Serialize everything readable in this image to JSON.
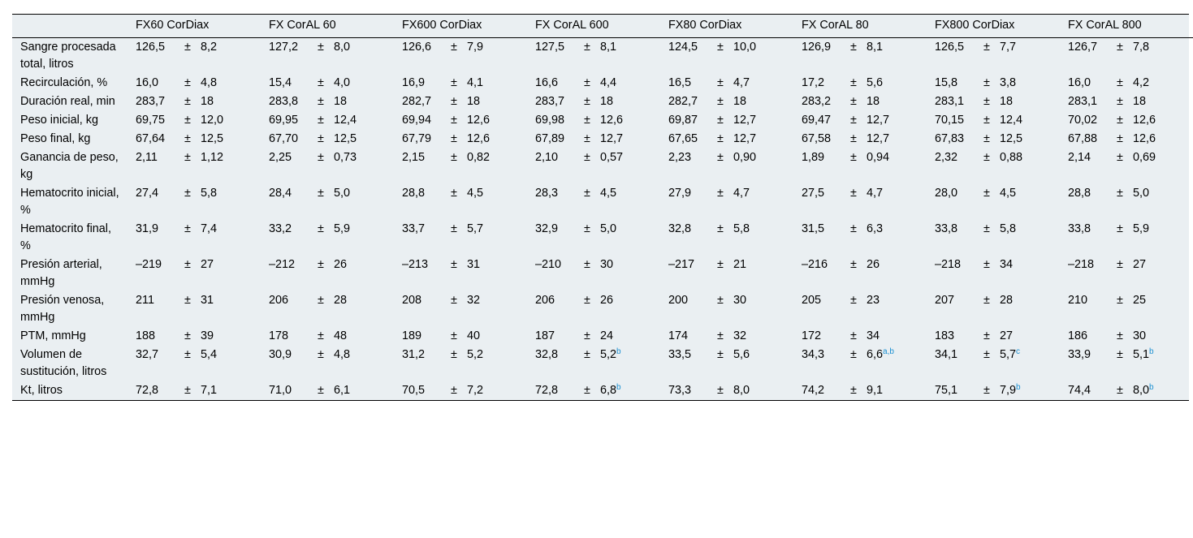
{
  "table": {
    "corner": "",
    "columns": [
      "FX60 CorDiax",
      "FX CorAL 60",
      "FX600 CorDiax",
      "FX CorAL 600",
      "FX80 CorDiax",
      "FX CorAL 80",
      "FX800 CorDiax",
      "FX CorAL 800"
    ],
    "rows": [
      {
        "label": "Sangre procesada total, litros",
        "cells": [
          {
            "mean": "126,5",
            "pm": "±",
            "sd": "8,2",
            "note": ""
          },
          {
            "mean": "127,2",
            "pm": "±",
            "sd": "8,0",
            "note": ""
          },
          {
            "mean": "126,6",
            "pm": "±",
            "sd": "7,9",
            "note": ""
          },
          {
            "mean": "127,5",
            "pm": "±",
            "sd": "8,1",
            "note": ""
          },
          {
            "mean": "124,5",
            "pm": "±",
            "sd": "10,0",
            "note": ""
          },
          {
            "mean": "126,9",
            "pm": "±",
            "sd": "8,1",
            "note": ""
          },
          {
            "mean": "126,5",
            "pm": "±",
            "sd": "7,7",
            "note": ""
          },
          {
            "mean": "126,7",
            "pm": "±",
            "sd": "7,8",
            "note": ""
          }
        ]
      },
      {
        "label": "Recirculación, %",
        "cells": [
          {
            "mean": "16,0",
            "pm": "±",
            "sd": "4,8",
            "note": ""
          },
          {
            "mean": "15,4",
            "pm": "±",
            "sd": "4,0",
            "note": ""
          },
          {
            "mean": "16,9",
            "pm": "±",
            "sd": "4,1",
            "note": ""
          },
          {
            "mean": "16,6",
            "pm": "±",
            "sd": "4,4",
            "note": ""
          },
          {
            "mean": "16,5",
            "pm": "±",
            "sd": "4,7",
            "note": ""
          },
          {
            "mean": "17,2",
            "pm": "±",
            "sd": "5,6",
            "note": ""
          },
          {
            "mean": "15,8",
            "pm": "±",
            "sd": "3,8",
            "note": ""
          },
          {
            "mean": "16,0",
            "pm": "±",
            "sd": "4,2",
            "note": ""
          }
        ]
      },
      {
        "label": "Duración real, min",
        "cells": [
          {
            "mean": "283,7",
            "pm": "±",
            "sd": "18",
            "note": ""
          },
          {
            "mean": "283,8",
            "pm": "±",
            "sd": "18",
            "note": ""
          },
          {
            "mean": "282,7",
            "pm": "±",
            "sd": "18",
            "note": ""
          },
          {
            "mean": "283,7",
            "pm": "±",
            "sd": "18",
            "note": ""
          },
          {
            "mean": "282,7",
            "pm": "±",
            "sd": "18",
            "note": ""
          },
          {
            "mean": "283,2",
            "pm": "±",
            "sd": "18",
            "note": ""
          },
          {
            "mean": "283,1",
            "pm": "±",
            "sd": "18",
            "note": ""
          },
          {
            "mean": "283,1",
            "pm": "±",
            "sd": "18",
            "note": ""
          }
        ]
      },
      {
        "label": "Peso inicial, kg",
        "cells": [
          {
            "mean": "69,75",
            "pm": "±",
            "sd": "12,0",
            "note": ""
          },
          {
            "mean": "69,95",
            "pm": "±",
            "sd": "12,4",
            "note": ""
          },
          {
            "mean": "69,94",
            "pm": "±",
            "sd": "12,6",
            "note": ""
          },
          {
            "mean": "69,98",
            "pm": "±",
            "sd": "12,6",
            "note": ""
          },
          {
            "mean": "69,87",
            "pm": "±",
            "sd": "12,7",
            "note": ""
          },
          {
            "mean": "69,47",
            "pm": "±",
            "sd": "12,7",
            "note": ""
          },
          {
            "mean": "70,15",
            "pm": "±",
            "sd": "12,4",
            "note": ""
          },
          {
            "mean": "70,02",
            "pm": "±",
            "sd": "12,6",
            "note": ""
          }
        ]
      },
      {
        "label": "Peso final, kg",
        "cells": [
          {
            "mean": "67,64",
            "pm": "±",
            "sd": "12,5",
            "note": ""
          },
          {
            "mean": "67,70",
            "pm": "±",
            "sd": "12,5",
            "note": ""
          },
          {
            "mean": "67,79",
            "pm": "±",
            "sd": "12,6",
            "note": ""
          },
          {
            "mean": "67,89",
            "pm": "±",
            "sd": "12,7",
            "note": ""
          },
          {
            "mean": "67,65",
            "pm": "±",
            "sd": "12,7",
            "note": ""
          },
          {
            "mean": "67,58",
            "pm": "±",
            "sd": "12,7",
            "note": ""
          },
          {
            "mean": "67,83",
            "pm": "±",
            "sd": "12,5",
            "note": ""
          },
          {
            "mean": "67,88",
            "pm": "±",
            "sd": "12,6",
            "note": ""
          }
        ]
      },
      {
        "label": "Ganancia de peso, kg",
        "cells": [
          {
            "mean": "2,11",
            "pm": "±",
            "sd": "1,12",
            "note": ""
          },
          {
            "mean": "2,25",
            "pm": "±",
            "sd": "0,73",
            "note": ""
          },
          {
            "mean": "2,15",
            "pm": "±",
            "sd": "0,82",
            "note": ""
          },
          {
            "mean": "2,10",
            "pm": "±",
            "sd": "0,57",
            "note": ""
          },
          {
            "mean": "2,23",
            "pm": "±",
            "sd": "0,90",
            "note": ""
          },
          {
            "mean": "1,89",
            "pm": "±",
            "sd": "0,94",
            "note": ""
          },
          {
            "mean": "2,32",
            "pm": "±",
            "sd": "0,88",
            "note": ""
          },
          {
            "mean": "2,14",
            "pm": "±",
            "sd": "0,69",
            "note": ""
          }
        ]
      },
      {
        "label": "Hematocrito inicial, %",
        "cells": [
          {
            "mean": "27,4",
            "pm": "±",
            "sd": "5,8",
            "note": ""
          },
          {
            "mean": "28,4",
            "pm": "±",
            "sd": "5,0",
            "note": ""
          },
          {
            "mean": "28,8",
            "pm": "±",
            "sd": "4,5",
            "note": ""
          },
          {
            "mean": "28,3",
            "pm": "±",
            "sd": "4,5",
            "note": ""
          },
          {
            "mean": "27,9",
            "pm": "±",
            "sd": "4,7",
            "note": ""
          },
          {
            "mean": "27,5",
            "pm": "±",
            "sd": "4,7",
            "note": ""
          },
          {
            "mean": "28,0",
            "pm": "±",
            "sd": "4,5",
            "note": ""
          },
          {
            "mean": "28,8",
            "pm": "±",
            "sd": "5,0",
            "note": ""
          }
        ]
      },
      {
        "label": "Hematocrito final, %",
        "cells": [
          {
            "mean": "31,9",
            "pm": "±",
            "sd": "7,4",
            "note": ""
          },
          {
            "mean": "33,2",
            "pm": "±",
            "sd": "5,9",
            "note": ""
          },
          {
            "mean": "33,7",
            "pm": "±",
            "sd": "5,7",
            "note": ""
          },
          {
            "mean": "32,9",
            "pm": "±",
            "sd": "5,0",
            "note": ""
          },
          {
            "mean": "32,8",
            "pm": "±",
            "sd": "5,8",
            "note": ""
          },
          {
            "mean": "31,5",
            "pm": "±",
            "sd": "6,3",
            "note": ""
          },
          {
            "mean": "33,8",
            "pm": "±",
            "sd": "5,8",
            "note": ""
          },
          {
            "mean": "33,8",
            "pm": "±",
            "sd": "5,9",
            "note": ""
          }
        ]
      },
      {
        "label": "Presión arterial, mmHg",
        "cells": [
          {
            "mean": "–219",
            "pm": "±",
            "sd": "27",
            "note": ""
          },
          {
            "mean": "–212",
            "pm": "±",
            "sd": "26",
            "note": ""
          },
          {
            "mean": "–213",
            "pm": "±",
            "sd": "31",
            "note": ""
          },
          {
            "mean": "–210",
            "pm": "±",
            "sd": "30",
            "note": ""
          },
          {
            "mean": "–217",
            "pm": "±",
            "sd": "21",
            "note": ""
          },
          {
            "mean": "–216",
            "pm": "±",
            "sd": "26",
            "note": ""
          },
          {
            "mean": "–218",
            "pm": "±",
            "sd": "34",
            "note": ""
          },
          {
            "mean": "–218",
            "pm": "±",
            "sd": "27",
            "note": ""
          }
        ]
      },
      {
        "label": "Presión venosa, mmHg",
        "cells": [
          {
            "mean": "211",
            "pm": "±",
            "sd": "31",
            "note": ""
          },
          {
            "mean": "206",
            "pm": "±",
            "sd": "28",
            "note": ""
          },
          {
            "mean": "208",
            "pm": "±",
            "sd": "32",
            "note": ""
          },
          {
            "mean": "206",
            "pm": "±",
            "sd": "26",
            "note": ""
          },
          {
            "mean": "200",
            "pm": "±",
            "sd": "30",
            "note": ""
          },
          {
            "mean": "205",
            "pm": "±",
            "sd": "23",
            "note": ""
          },
          {
            "mean": "207",
            "pm": "±",
            "sd": "28",
            "note": ""
          },
          {
            "mean": "210",
            "pm": "±",
            "sd": "25",
            "note": ""
          }
        ]
      },
      {
        "label": "PTM, mmHg",
        "cells": [
          {
            "mean": "188",
            "pm": "±",
            "sd": "39",
            "note": ""
          },
          {
            "mean": "178",
            "pm": "±",
            "sd": "48",
            "note": ""
          },
          {
            "mean": "189",
            "pm": "±",
            "sd": "40",
            "note": ""
          },
          {
            "mean": "187",
            "pm": "±",
            "sd": "24",
            "note": ""
          },
          {
            "mean": "174",
            "pm": "±",
            "sd": "32",
            "note": ""
          },
          {
            "mean": "172",
            "pm": "±",
            "sd": "34",
            "note": ""
          },
          {
            "mean": "183",
            "pm": "±",
            "sd": "27",
            "note": ""
          },
          {
            "mean": "186",
            "pm": "±",
            "sd": "30",
            "note": ""
          }
        ]
      },
      {
        "label": "Volumen de sustitución, litros",
        "cells": [
          {
            "mean": "32,7",
            "pm": "±",
            "sd": "5,4",
            "note": ""
          },
          {
            "mean": "30,9",
            "pm": "±",
            "sd": "4,8",
            "note": ""
          },
          {
            "mean": "31,2",
            "pm": "±",
            "sd": "5,2",
            "note": ""
          },
          {
            "mean": "32,8",
            "pm": "±",
            "sd": "5,2",
            "note": "b"
          },
          {
            "mean": "33,5",
            "pm": "±",
            "sd": "5,6",
            "note": ""
          },
          {
            "mean": "34,3",
            "pm": "±",
            "sd": "6,6",
            "note": "a,b"
          },
          {
            "mean": "34,1",
            "pm": "±",
            "sd": "5,7",
            "note": "c"
          },
          {
            "mean": "33,9",
            "pm": "±",
            "sd": "5,1",
            "note": "b"
          }
        ]
      },
      {
        "label": "Kt, litros",
        "cells": [
          {
            "mean": "72,8",
            "pm": "±",
            "sd": "7,1",
            "note": ""
          },
          {
            "mean": "71,0",
            "pm": "±",
            "sd": "6,1",
            "note": ""
          },
          {
            "mean": "70,5",
            "pm": "±",
            "sd": "7,2",
            "note": ""
          },
          {
            "mean": "72,8",
            "pm": "±",
            "sd": "6,8",
            "note": "b"
          },
          {
            "mean": "73,3",
            "pm": "±",
            "sd": "8,0",
            "note": ""
          },
          {
            "mean": "74,2",
            "pm": "±",
            "sd": "9,1",
            "note": ""
          },
          {
            "mean": "75,1",
            "pm": "±",
            "sd": "7,9",
            "note": "b"
          },
          {
            "mean": "74,4",
            "pm": "±",
            "sd": "8,0",
            "note": "b"
          }
        ]
      }
    ]
  },
  "colors": {
    "table_background": "#eaeff2",
    "footnote_marker": "#1a8fd1",
    "text": "#000000",
    "rule": "#000000"
  }
}
